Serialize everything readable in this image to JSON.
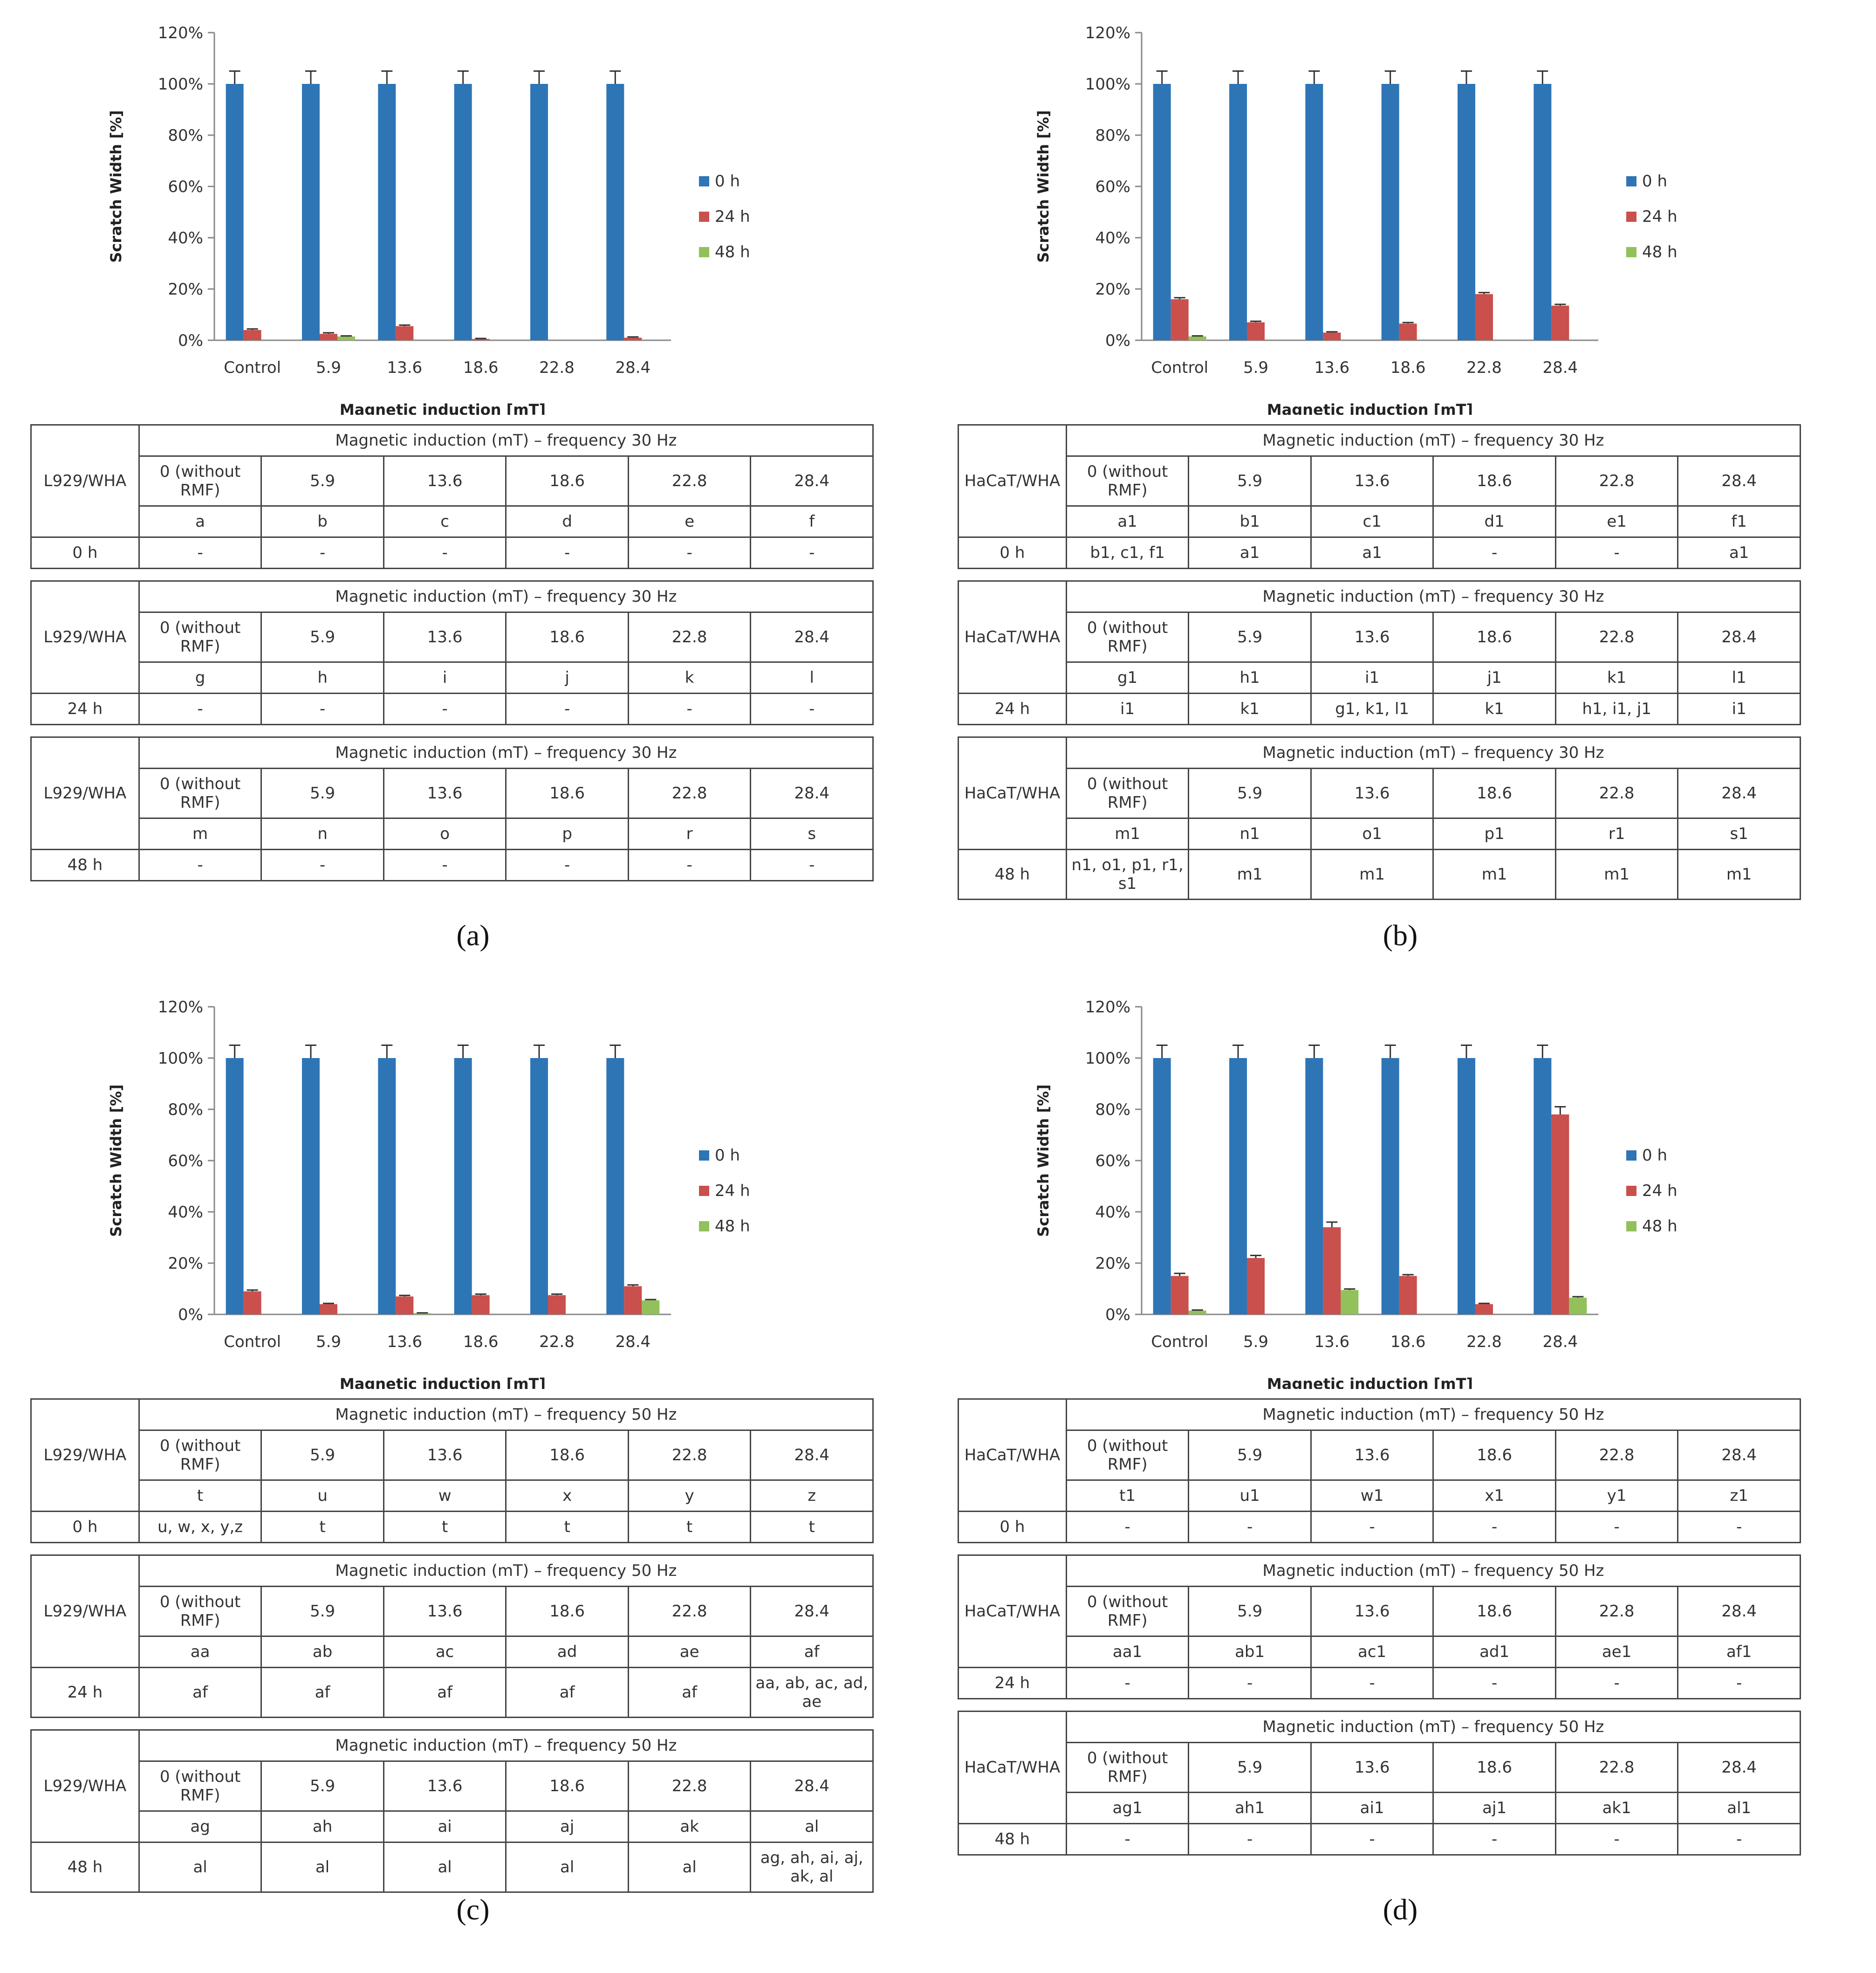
{
  "colors": {
    "h0": "#2E75B6",
    "h24": "#C9504C",
    "h48": "#92C05A"
  },
  "panels": [
    {
      "id": "a",
      "label": "(a)",
      "chart_data": {
        "type": "bar",
        "categories": [
          "Control",
          "5.9",
          "13.6",
          "18.6",
          "22.8",
          "28.4"
        ],
        "series": [
          {
            "name": "0 h",
            "values": [
              100,
              100,
              100,
              100,
              100,
              100
            ],
            "errors": [
              5,
              5,
              5,
              5,
              5,
              5
            ]
          },
          {
            "name": "24 h",
            "values": [
              4,
              2.5,
              5.5,
              0.5,
              0,
              1
            ],
            "errors": [
              0.4,
              0.4,
              0.4,
              0.2,
              0,
              0.3
            ]
          },
          {
            "name": "48 h",
            "values": [
              0,
              1.5,
              0,
              0,
              0,
              0
            ],
            "errors": [
              0,
              0.2,
              0,
              0,
              0,
              0
            ]
          }
        ],
        "xlabel": "Magnetic induction [mT]",
        "ylabel": "Scratch Width [%]",
        "ylim": [
          0,
          120
        ],
        "yticks": [
          "0%",
          "20%",
          "40%",
          "60%",
          "80%",
          "100%",
          "120%"
        ],
        "legend": "right"
      },
      "tables": [
        {
          "cell": "L929/WHA",
          "header": "Magnetic induction (mT) – frequency 30 Hz",
          "cols": [
            "0 (without RMF)",
            "5.9",
            "13.6",
            "18.6",
            "22.8",
            "28.4"
          ],
          "codes": [
            "a",
            "b",
            "c",
            "d",
            "e",
            "f"
          ],
          "time": "0 h",
          "vals": [
            "-",
            "-",
            "-",
            "-",
            "-",
            "-"
          ]
        },
        {
          "cell": "L929/WHA",
          "header": "Magnetic induction (mT) – frequency 30 Hz",
          "cols": [
            "0 (without RMF)",
            "5.9",
            "13.6",
            "18.6",
            "22.8",
            "28.4"
          ],
          "codes": [
            "g",
            "h",
            "i",
            "j",
            "k",
            "l"
          ],
          "time": "24 h",
          "vals": [
            "-",
            "-",
            "-",
            "-",
            "-",
            "-"
          ]
        },
        {
          "cell": "L929/WHA",
          "header": "Magnetic induction (mT) – frequency 30 Hz",
          "cols": [
            "0 (without RMF)",
            "5.9",
            "13.6",
            "18.6",
            "22.8",
            "28.4"
          ],
          "codes": [
            "m",
            "n",
            "o",
            "p",
            "r",
            "s"
          ],
          "time": "48 h",
          "vals": [
            "-",
            "-",
            "-",
            "-",
            "-",
            "-"
          ]
        }
      ]
    },
    {
      "id": "b",
      "label": "(b)",
      "chart_data": {
        "type": "bar",
        "categories": [
          "Control",
          "5.9",
          "13.6",
          "18.6",
          "22.8",
          "28.4"
        ],
        "series": [
          {
            "name": "0 h",
            "values": [
              100,
              100,
              100,
              100,
              100,
              100
            ],
            "errors": [
              5,
              5,
              5,
              5,
              5,
              5
            ]
          },
          {
            "name": "24 h",
            "values": [
              16,
              7,
              3,
              6.5,
              18,
              13.5
            ],
            "errors": [
              0.6,
              0.4,
              0.3,
              0.4,
              0.6,
              0.5
            ]
          },
          {
            "name": "48 h",
            "values": [
              1.5,
              0,
              0,
              0,
              0,
              0
            ],
            "errors": [
              0.2,
              0,
              0,
              0,
              0,
              0
            ]
          }
        ],
        "xlabel": "Magnetic induction [mT]",
        "ylabel": "Scratch Width [%]",
        "ylim": [
          0,
          120
        ],
        "yticks": [
          "0%",
          "20%",
          "40%",
          "60%",
          "80%",
          "100%",
          "120%"
        ],
        "legend": "right"
      },
      "tables": [
        {
          "cell": "HaCaT/WHA",
          "header": "Magnetic induction (mT) – frequency 30 Hz",
          "cols": [
            "0 (without RMF)",
            "5.9",
            "13.6",
            "18.6",
            "22.8",
            "28.4"
          ],
          "codes": [
            "a1",
            "b1",
            "c1",
            "d1",
            "e1",
            "f1"
          ],
          "time": "0 h",
          "vals": [
            "b1, c1, f1",
            "a1",
            "a1",
            "-",
            "-",
            "a1"
          ]
        },
        {
          "cell": "HaCaT/WHA",
          "header": "Magnetic induction (mT) – frequency 30 Hz",
          "cols": [
            "0 (without RMF)",
            "5.9",
            "13.6",
            "18.6",
            "22.8",
            "28.4"
          ],
          "codes": [
            "g1",
            "h1",
            "i1",
            "j1",
            "k1",
            "l1"
          ],
          "time": "24 h",
          "vals": [
            "i1",
            "k1",
            "g1, k1, l1",
            "k1",
            "h1, i1, j1",
            "i1"
          ]
        },
        {
          "cell": "HaCaT/WHA",
          "header": "Magnetic induction (mT) – frequency 30 Hz",
          "cols": [
            "0 (without RMF)",
            "5.9",
            "13.6",
            "18.6",
            "22.8",
            "28.4"
          ],
          "codes": [
            "m1",
            "n1",
            "o1",
            "p1",
            "r1",
            "s1"
          ],
          "time": "48 h",
          "vals": [
            "n1, o1, p1, r1, s1",
            "m1",
            "m1",
            "m1",
            "m1",
            "m1"
          ]
        }
      ]
    },
    {
      "id": "c",
      "label": "(c)",
      "chart_data": {
        "type": "bar",
        "categories": [
          "Control",
          "5.9",
          "13.6",
          "18.6",
          "22.8",
          "28.4"
        ],
        "series": [
          {
            "name": "0 h",
            "values": [
              100,
              100,
              100,
              100,
              100,
              100
            ],
            "errors": [
              5,
              5,
              5,
              5,
              5,
              5
            ]
          },
          {
            "name": "24 h",
            "values": [
              9,
              4,
              7,
              7.5,
              7.5,
              11
            ],
            "errors": [
              0.5,
              0.3,
              0.4,
              0.4,
              0.4,
              0.5
            ]
          },
          {
            "name": "48 h",
            "values": [
              0,
              0,
              0.5,
              0,
              0,
              5.5
            ],
            "errors": [
              0,
              0,
              0.1,
              0,
              0,
              0.3
            ]
          }
        ],
        "xlabel": "Magnetic induction [mT]",
        "ylabel": "Scratch Width [%]",
        "ylim": [
          0,
          120
        ],
        "yticks": [
          "0%",
          "20%",
          "40%",
          "60%",
          "80%",
          "100%",
          "120%"
        ],
        "legend": "right"
      },
      "tables": [
        {
          "cell": "L929/WHA",
          "header": "Magnetic induction (mT) – frequency 50 Hz",
          "cols": [
            "0 (without RMF)",
            "5.9",
            "13.6",
            "18.6",
            "22.8",
            "28.4"
          ],
          "codes": [
            "t",
            "u",
            "w",
            "x",
            "y",
            "z"
          ],
          "time": "0 h",
          "vals": [
            "u, w, x, y,z",
            "t",
            "t",
            "t",
            "t",
            "t"
          ]
        },
        {
          "cell": "L929/WHA",
          "header": "Magnetic induction (mT) – frequency 50 Hz",
          "cols": [
            "0 (without RMF)",
            "5.9",
            "13.6",
            "18.6",
            "22.8",
            "28.4"
          ],
          "codes": [
            "aa",
            "ab",
            "ac",
            "ad",
            "ae",
            "af"
          ],
          "time": "24 h",
          "vals": [
            "af",
            "af",
            "af",
            "af",
            "af",
            "aa, ab, ac, ad, ae"
          ]
        },
        {
          "cell": "L929/WHA",
          "header": "Magnetic induction (mT) – frequency 50 Hz",
          "cols": [
            "0 (without RMF)",
            "5.9",
            "13.6",
            "18.6",
            "22.8",
            "28.4"
          ],
          "codes": [
            "ag",
            "ah",
            "ai",
            "aj",
            "ak",
            "al"
          ],
          "time": "48 h",
          "vals": [
            "al",
            "al",
            "al",
            "al",
            "al",
            "ag, ah, ai, aj, ak, al"
          ]
        }
      ]
    },
    {
      "id": "d",
      "label": "(d)",
      "chart_data": {
        "type": "bar",
        "categories": [
          "Control",
          "5.9",
          "13.6",
          "18.6",
          "22.8",
          "28.4"
        ],
        "series": [
          {
            "name": "0 h",
            "values": [
              100,
              100,
              100,
              100,
              100,
              100
            ],
            "errors": [
              5,
              5,
              5,
              5,
              5,
              5
            ]
          },
          {
            "name": "24 h",
            "values": [
              15,
              22,
              34,
              15,
              4,
              78
            ],
            "errors": [
              1,
              1,
              2,
              0.5,
              0.3,
              3
            ]
          },
          {
            "name": "48 h",
            "values": [
              1.5,
              0,
              9.5,
              0,
              0,
              6.5
            ],
            "errors": [
              0.2,
              0,
              0.4,
              0,
              0,
              0.4
            ]
          }
        ],
        "xlabel": "Magnetic induction [mT]",
        "ylabel": "Scratch Width [%]",
        "ylim": [
          0,
          120
        ],
        "yticks": [
          "0%",
          "20%",
          "40%",
          "60%",
          "80%",
          "100%",
          "120%"
        ],
        "legend": "right"
      },
      "tables": [
        {
          "cell": "HaCaT/WHA",
          "header": "Magnetic induction (mT) – frequency 50 Hz",
          "cols": [
            "0 (without RMF)",
            "5.9",
            "13.6",
            "18.6",
            "22.8",
            "28.4"
          ],
          "codes": [
            "t1",
            "u1",
            "w1",
            "x1",
            "y1",
            "z1"
          ],
          "time": "0 h",
          "vals": [
            "-",
            "-",
            "-",
            "-",
            "-",
            "-"
          ]
        },
        {
          "cell": "HaCaT/WHA",
          "header": "Magnetic induction (mT) – frequency 50 Hz",
          "cols": [
            "0 (without RMF)",
            "5.9",
            "13.6",
            "18.6",
            "22.8",
            "28.4"
          ],
          "codes": [
            "aa1",
            "ab1",
            "ac1",
            "ad1",
            "ae1",
            "af1"
          ],
          "time": "24 h",
          "vals": [
            "-",
            "-",
            "-",
            "-",
            "-",
            "-"
          ]
        },
        {
          "cell": "HaCaT/WHA",
          "header": "Magnetic induction (mT) – frequency 50 Hz",
          "cols": [
            "0 (without RMF)",
            "5.9",
            "13.6",
            "18.6",
            "22.8",
            "28.4"
          ],
          "codes": [
            "ag1",
            "ah1",
            "ai1",
            "aj1",
            "ak1",
            "al1"
          ],
          "time": "48 h",
          "vals": [
            "-",
            "-",
            "-",
            "-",
            "-",
            "-"
          ]
        }
      ]
    }
  ]
}
